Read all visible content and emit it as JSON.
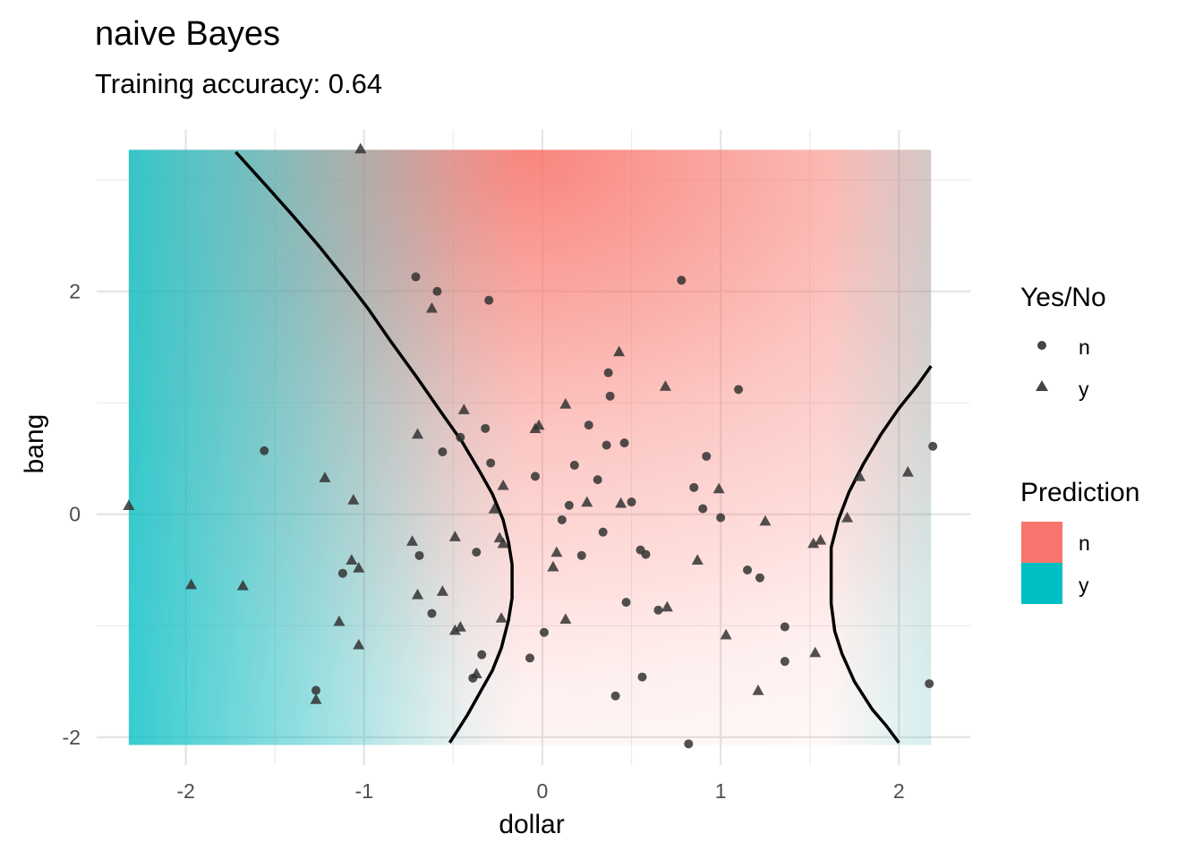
{
  "chart_data": {
    "type": "scatter",
    "title": "naive Bayes",
    "subtitle": "Training accuracy: 0.64",
    "xlabel": "dollar",
    "ylabel": "bang",
    "xlim": [
      -2.5,
      2.4
    ],
    "ylim": [
      -2.25,
      3.45
    ],
    "x_ticks": [
      -2,
      -1,
      0,
      1,
      2
    ],
    "y_ticks": [
      -2,
      0,
      2
    ],
    "x_tick_labels": [
      "-2",
      "-1",
      "0",
      "1",
      "2"
    ],
    "y_tick_labels": [
      "-2",
      "0",
      "2"
    ],
    "grid": true,
    "legend_position": "right",
    "shape_legend": {
      "title": "Yes/No",
      "entries": [
        {
          "label": "n",
          "shape": "circle"
        },
        {
          "label": "y",
          "shape": "triangle"
        }
      ]
    },
    "fill_legend": {
      "title": "Prediction",
      "entries": [
        {
          "label": "n",
          "color": "#F8766D"
        },
        {
          "label": "y",
          "color": "#00BFC4"
        }
      ]
    },
    "background_region": {
      "x": [
        -2.32,
        2.18
      ],
      "y": [
        -2.07,
        3.27
      ]
    },
    "decision_boundary": [
      {
        "x": [
          -1.72,
          -1.55,
          -1.4,
          -1.25,
          -1.1,
          -0.98,
          -0.85,
          -0.7,
          -0.57,
          -0.45,
          -0.35,
          -0.28,
          -0.22,
          -0.19,
          -0.17,
          -0.17,
          -0.19,
          -0.23,
          -0.28,
          -0.35,
          -0.42,
          -0.52
        ],
        "y": [
          3.25,
          2.95,
          2.68,
          2.4,
          2.1,
          1.85,
          1.55,
          1.22,
          0.92,
          0.65,
          0.38,
          0.18,
          -0.05,
          -0.25,
          -0.45,
          -0.75,
          -0.95,
          -1.2,
          -1.4,
          -1.6,
          -1.8,
          -2.05
        ]
      },
      {
        "x": [
          2.18,
          2.1,
          2.0,
          1.9,
          1.8,
          1.72,
          1.66,
          1.62,
          1.62,
          1.64,
          1.68,
          1.75,
          1.85,
          1.93,
          2.0
        ],
        "y": [
          1.33,
          1.15,
          0.95,
          0.72,
          0.45,
          0.2,
          -0.05,
          -0.3,
          -0.8,
          -1.05,
          -1.25,
          -1.5,
          -1.75,
          -1.9,
          -2.05
        ]
      }
    ],
    "series": [
      {
        "name": "n",
        "shape": "circle",
        "points": [
          [
            -0.71,
            2.13
          ],
          [
            -0.59,
            2.0
          ],
          [
            -0.3,
            1.92
          ],
          [
            0.78,
            2.1
          ],
          [
            1.1,
            1.12
          ],
          [
            0.37,
            1.27
          ],
          [
            0.38,
            1.06
          ],
          [
            -0.32,
            0.77
          ],
          [
            0.26,
            0.8
          ],
          [
            -0.56,
            0.56
          ],
          [
            -0.46,
            0.69
          ],
          [
            -0.29,
            0.46
          ],
          [
            0.36,
            0.62
          ],
          [
            0.46,
            0.64
          ],
          [
            0.18,
            0.44
          ],
          [
            0.92,
            0.52
          ],
          [
            -1.56,
            0.57
          ],
          [
            -0.04,
            0.34
          ],
          [
            0.31,
            0.31
          ],
          [
            0.15,
            0.08
          ],
          [
            0.5,
            0.11
          ],
          [
            0.85,
            0.24
          ],
          [
            0.9,
            0.05
          ],
          [
            1.0,
            -0.03
          ],
          [
            0.11,
            -0.05
          ],
          [
            -0.37,
            -0.34
          ],
          [
            0.22,
            -0.37
          ],
          [
            0.55,
            -0.32
          ],
          [
            0.58,
            -0.36
          ],
          [
            -0.69,
            -0.37
          ],
          [
            -1.12,
            -0.53
          ],
          [
            1.15,
            -0.5
          ],
          [
            1.22,
            -0.57
          ],
          [
            0.34,
            -0.16
          ],
          [
            -0.62,
            -0.89
          ],
          [
            0.47,
            -0.79
          ],
          [
            0.65,
            -0.86
          ],
          [
            1.36,
            -1.01
          ],
          [
            -0.07,
            -1.29
          ],
          [
            0.01,
            -1.06
          ],
          [
            -0.34,
            -1.26
          ],
          [
            1.36,
            -1.32
          ],
          [
            0.56,
            -1.46
          ],
          [
            0.41,
            -1.63
          ],
          [
            -1.27,
            -1.58
          ],
          [
            2.17,
            -1.52
          ],
          [
            2.19,
            0.61
          ],
          [
            -0.39,
            -1.47
          ],
          [
            0.82,
            -2.06
          ]
        ]
      },
      {
        "name": "y",
        "shape": "triangle",
        "points": [
          [
            -1.02,
            3.28
          ],
          [
            -0.62,
            1.85
          ],
          [
            0.43,
            1.46
          ],
          [
            0.69,
            1.15
          ],
          [
            -0.44,
            0.94
          ],
          [
            0.13,
            0.99
          ],
          [
            -0.7,
            0.72
          ],
          [
            -0.04,
            0.77
          ],
          [
            -0.02,
            0.8
          ],
          [
            -0.27,
            0.05
          ],
          [
            -0.22,
            0.26
          ],
          [
            0.25,
            0.11
          ],
          [
            0.44,
            0.1
          ],
          [
            0.99,
            0.23
          ],
          [
            -1.22,
            0.33
          ],
          [
            -1.06,
            0.13
          ],
          [
            -2.32,
            0.08
          ],
          [
            1.25,
            -0.06
          ],
          [
            1.71,
            -0.03
          ],
          [
            1.78,
            0.34
          ],
          [
            2.05,
            0.38
          ],
          [
            -0.49,
            -0.2
          ],
          [
            -0.24,
            -0.21
          ],
          [
            -0.22,
            -0.26
          ],
          [
            0.08,
            -0.34
          ],
          [
            0.06,
            -0.47
          ],
          [
            0.87,
            -0.41
          ],
          [
            1.52,
            -0.26
          ],
          [
            1.56,
            -0.23
          ],
          [
            -0.73,
            -0.24
          ],
          [
            -1.07,
            -0.41
          ],
          [
            -1.03,
            -0.48
          ],
          [
            -1.97,
            -0.63
          ],
          [
            -1.68,
            -0.64
          ],
          [
            -0.7,
            -0.72
          ],
          [
            -0.56,
            -0.69
          ],
          [
            -0.23,
            -0.93
          ],
          [
            -0.49,
            -1.04
          ],
          [
            -0.46,
            -1.01
          ],
          [
            0.13,
            -0.94
          ],
          [
            0.7,
            -0.83
          ],
          [
            1.03,
            -1.08
          ],
          [
            -1.14,
            -0.96
          ],
          [
            -1.03,
            -1.17
          ],
          [
            1.53,
            -1.24
          ],
          [
            -0.37,
            -1.43
          ],
          [
            1.21,
            -1.58
          ],
          [
            -1.27,
            -1.66
          ]
        ]
      }
    ]
  }
}
